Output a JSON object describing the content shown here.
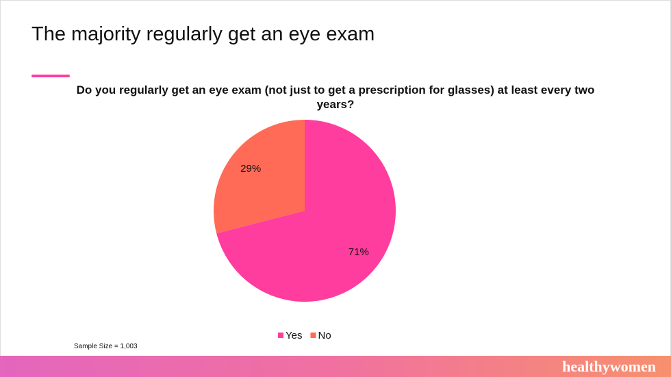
{
  "title": "The majority regularly get an eye exam",
  "chart_data": {
    "type": "pie",
    "title": "Do you regularly get an eye exam (not just to get a prescription for glasses) at least every two years?",
    "categories": [
      "Yes",
      "No"
    ],
    "values": [
      71,
      29
    ],
    "value_labels": [
      "71%",
      "29%"
    ],
    "colors": [
      "#ff3d9e",
      "#ff6b57"
    ]
  },
  "note": "Sample Size = 1,003",
  "brand": "healthywomen"
}
